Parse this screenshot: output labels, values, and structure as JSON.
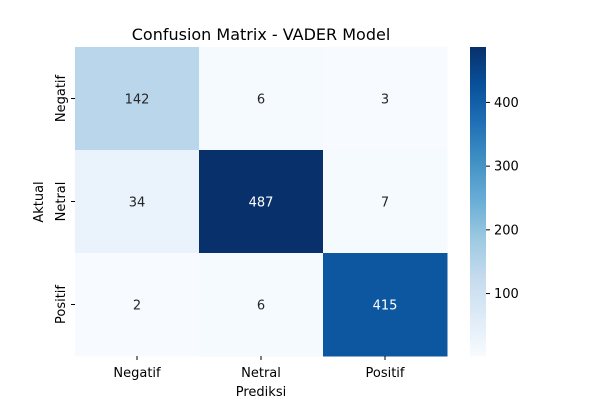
{
  "chart_data": {
    "type": "heatmap",
    "title": "Confusion Matrix - VADER Model",
    "xlabel": "Prediksi",
    "ylabel": "Aktual",
    "x_categories": [
      "Negatif",
      "Netral",
      "Positif"
    ],
    "y_categories": [
      "Negatif",
      "Netral",
      "Positif"
    ],
    "values": [
      [
        142,
        6,
        3
      ],
      [
        34,
        487,
        7
      ],
      [
        2,
        6,
        415
      ]
    ],
    "colorbar": {
      "min": 2,
      "max": 487,
      "ticks": [
        "100",
        "200",
        "300",
        "400"
      ],
      "colormap": "Blues"
    }
  }
}
